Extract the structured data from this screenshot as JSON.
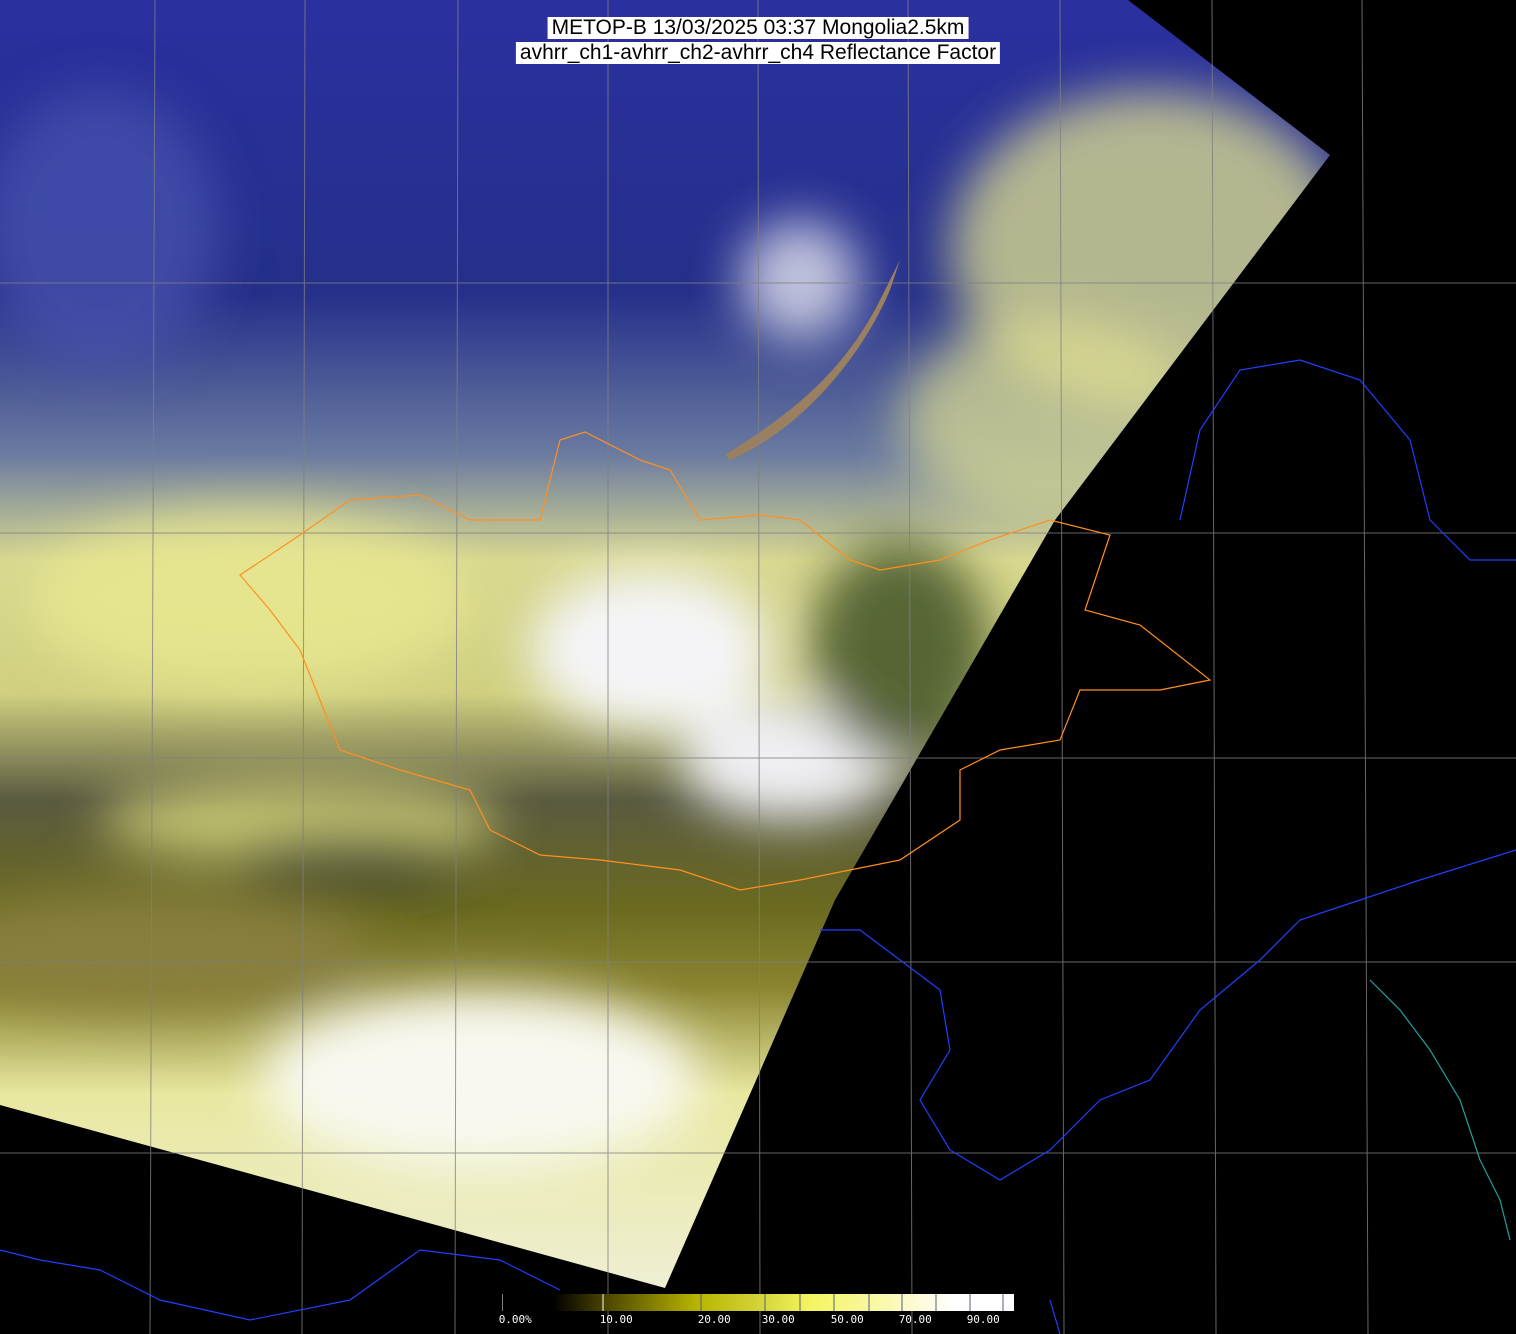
{
  "title": {
    "line1": "METOP-B 13/03/2025 03:37 Mongolia2.5km",
    "line2": "avhrr_ch1-avhrr_ch2-avhrr_ch4 Reflectance Factor"
  },
  "colorbar": {
    "range": [
      0,
      100
    ],
    "colors": [
      "#000000",
      "#5a5200",
      "#b8b800",
      "#d8d840",
      "#f0f060",
      "#f8f8a0",
      "#fffff0",
      "#ffffff"
    ],
    "ticks": [
      0,
      10,
      20,
      30,
      40,
      50,
      60,
      70,
      80,
      90,
      100
    ],
    "labels": [
      {
        "value": 0,
        "text": "0.00%"
      },
      {
        "value": 10,
        "text": "10.00"
      },
      {
        "value": 20,
        "text": "20.00"
      },
      {
        "value": 30,
        "text": "30.00"
      },
      {
        "value": 50,
        "text": "50.00"
      },
      {
        "value": 70,
        "text": "70.00"
      },
      {
        "value": 90,
        "text": "90.00"
      }
    ]
  },
  "colors": {
    "country_border": "#ff9020",
    "coastline": "#2040ff",
    "grid": "#808080",
    "rivers": "#20a0a0"
  }
}
